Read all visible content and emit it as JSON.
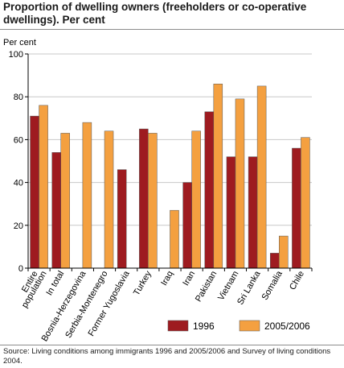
{
  "title": "Proportion of dwelling owners (freeholders or co-operative dwellings). Per cent",
  "source": "Source: Living conditions among immigrants 1996 and 2005/2006 and Survey of living conditions 2004.",
  "colors": {
    "1996": "#9e1b20",
    "2005/2006": "#f4a040"
  },
  "chart_data": {
    "type": "bar",
    "ylabel": "Per cent",
    "ylim": [
      0,
      100
    ],
    "yticks": [
      0,
      20,
      40,
      60,
      80,
      100
    ],
    "grid": true,
    "legend_position": "bottom",
    "categories": [
      "Entire population",
      "In total",
      "Bosnia-Herzegovina",
      "Serbia-Montenegro",
      "Former Yugoslavia",
      "Turkey",
      "Iraq",
      "Iran",
      "Pakistan",
      "Vietnam",
      "Sri Lanka",
      "Somalia",
      "Chile"
    ],
    "category_lines": [
      [
        "Entire",
        "population"
      ],
      [
        "In total"
      ],
      [
        "Bosnia-Herzegovina"
      ],
      [
        "Serbia-Montenegro"
      ],
      [
        "Former Yugoslavia"
      ],
      [
        "Turkey"
      ],
      [
        "Iraq"
      ],
      [
        "Iran"
      ],
      [
        "Pakistan"
      ],
      [
        "Vietnam"
      ],
      [
        "Sri Lanka"
      ],
      [
        "Somalia"
      ],
      [
        "Chile"
      ]
    ],
    "series": [
      {
        "name": "1996",
        "values": [
          71,
          54,
          0,
          0,
          46,
          65,
          0,
          40,
          73,
          52,
          52,
          7,
          56
        ]
      },
      {
        "name": "2005/2006",
        "values": [
          76,
          63,
          68,
          64,
          0,
          63,
          27,
          64,
          86,
          79,
          85,
          15,
          61
        ]
      }
    ]
  }
}
